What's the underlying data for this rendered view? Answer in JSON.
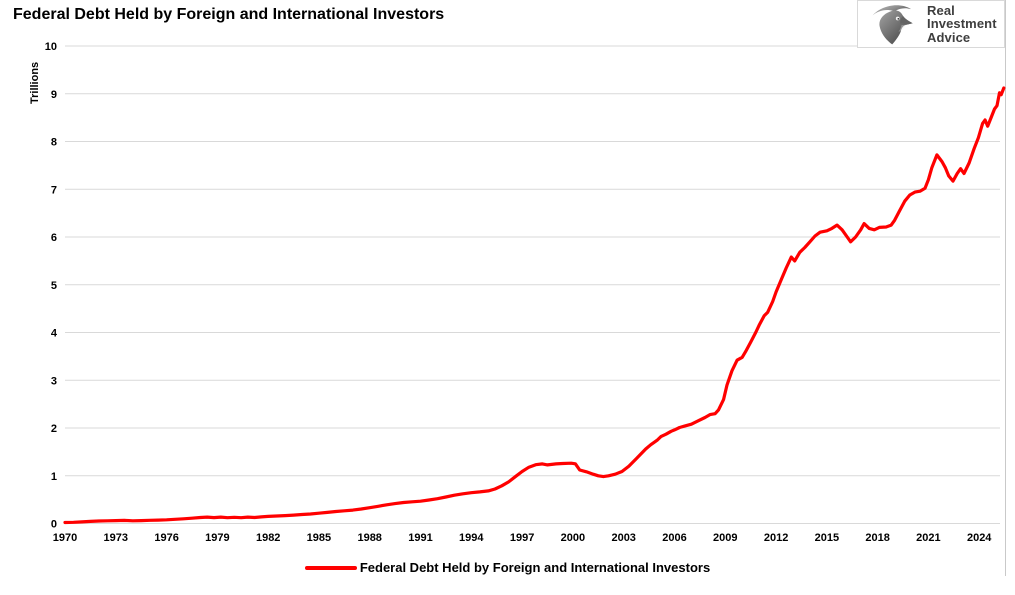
{
  "header": {
    "title": "Federal Debt Held by Foreign and International Investors",
    "logo": {
      "line1": "Real",
      "line2": "Investment",
      "line3": "Advice"
    }
  },
  "chart_data": {
    "type": "line",
    "title": "Federal Debt Held by Foreign and International Investors",
    "xlabel": "",
    "ylabel": "Trillions",
    "series_name": "Federal Debt Held by Foreign and International Investors",
    "line_color": "#FF0000",
    "grid_color": "#D9D9D9",
    "border_color": "#C9C9C9",
    "grid": true,
    "legend_position": "bottom",
    "ylim": [
      0,
      10
    ],
    "y_ticks": [
      0,
      1,
      2,
      3,
      4,
      5,
      6,
      7,
      8,
      9,
      10
    ],
    "x_range": [
      1970,
      2025.5
    ],
    "x_ticks": [
      1970,
      1973,
      1976,
      1979,
      1982,
      1985,
      1988,
      1991,
      1994,
      1997,
      2000,
      2003,
      2006,
      2009,
      2012,
      2015,
      2018,
      2021,
      2024
    ],
    "units": "trillions of dollars",
    "points": [
      [
        1970,
        0.02
      ],
      [
        1970.5,
        0.026
      ],
      [
        1971,
        0.034
      ],
      [
        1971.5,
        0.044
      ],
      [
        1972,
        0.052
      ],
      [
        1972.5,
        0.057
      ],
      [
        1973,
        0.061
      ],
      [
        1973.5,
        0.064
      ],
      [
        1974,
        0.057
      ],
      [
        1974.5,
        0.06
      ],
      [
        1975,
        0.066
      ],
      [
        1975.5,
        0.072
      ],
      [
        1976,
        0.078
      ],
      [
        1976.5,
        0.088
      ],
      [
        1977,
        0.098
      ],
      [
        1977.5,
        0.112
      ],
      [
        1978,
        0.126
      ],
      [
        1978.4,
        0.135
      ],
      [
        1978.8,
        0.124
      ],
      [
        1979.2,
        0.133
      ],
      [
        1979.6,
        0.121
      ],
      [
        1980,
        0.13
      ],
      [
        1980.4,
        0.122
      ],
      [
        1980.8,
        0.134
      ],
      [
        1981.2,
        0.126
      ],
      [
        1981.6,
        0.138
      ],
      [
        1982,
        0.149
      ],
      [
        1982.5,
        0.157
      ],
      [
        1983,
        0.165
      ],
      [
        1983.5,
        0.175
      ],
      [
        1984,
        0.188
      ],
      [
        1984.5,
        0.2
      ],
      [
        1985,
        0.215
      ],
      [
        1985.5,
        0.232
      ],
      [
        1986,
        0.252
      ],
      [
        1986.5,
        0.266
      ],
      [
        1987,
        0.281
      ],
      [
        1987.5,
        0.303
      ],
      [
        1988,
        0.33
      ],
      [
        1988.5,
        0.36
      ],
      [
        1989,
        0.392
      ],
      [
        1989.5,
        0.417
      ],
      [
        1990,
        0.44
      ],
      [
        1990.5,
        0.455
      ],
      [
        1991,
        0.468
      ],
      [
        1991.5,
        0.492
      ],
      [
        1992,
        0.52
      ],
      [
        1992.5,
        0.556
      ],
      [
        1993,
        0.592
      ],
      [
        1993.5,
        0.622
      ],
      [
        1994,
        0.646
      ],
      [
        1994.5,
        0.662
      ],
      [
        1995,
        0.682
      ],
      [
        1995.4,
        0.722
      ],
      [
        1995.8,
        0.79
      ],
      [
        1996.2,
        0.872
      ],
      [
        1996.6,
        0.98
      ],
      [
        1997,
        1.09
      ],
      [
        1997.4,
        1.18
      ],
      [
        1997.8,
        1.232
      ],
      [
        1998.2,
        1.248
      ],
      [
        1998.5,
        1.228
      ],
      [
        1999,
        1.248
      ],
      [
        1999.4,
        1.256
      ],
      [
        1999.9,
        1.262
      ],
      [
        2000.15,
        1.25
      ],
      [
        2000.4,
        1.12
      ],
      [
        2000.8,
        1.082
      ],
      [
        2001.2,
        1.032
      ],
      [
        2001.5,
        0.998
      ],
      [
        2001.8,
        0.982
      ],
      [
        2002.1,
        1.0
      ],
      [
        2002.5,
        1.032
      ],
      [
        2002.9,
        1.088
      ],
      [
        2003.3,
        1.2
      ],
      [
        2003.7,
        1.34
      ],
      [
        2004,
        1.45
      ],
      [
        2004.3,
        1.56
      ],
      [
        2004.6,
        1.65
      ],
      [
        2004.8,
        1.7
      ],
      [
        2005,
        1.75
      ],
      [
        2005.2,
        1.82
      ],
      [
        2005.5,
        1.87
      ],
      [
        2005.8,
        1.93
      ],
      [
        2006,
        1.96
      ],
      [
        2006.3,
        2.01
      ],
      [
        2006.6,
        2.04
      ],
      [
        2007,
        2.08
      ],
      [
        2007.4,
        2.15
      ],
      [
        2007.8,
        2.22
      ],
      [
        2008.1,
        2.28
      ],
      [
        2008.4,
        2.3
      ],
      [
        2008.6,
        2.38
      ],
      [
        2008.9,
        2.6
      ],
      [
        2009.1,
        2.9
      ],
      [
        2009.4,
        3.2
      ],
      [
        2009.7,
        3.42
      ],
      [
        2010,
        3.48
      ],
      [
        2010.2,
        3.6
      ],
      [
        2010.5,
        3.8
      ],
      [
        2010.8,
        4.0
      ],
      [
        2011,
        4.15
      ],
      [
        2011.3,
        4.35
      ],
      [
        2011.5,
        4.42
      ],
      [
        2011.8,
        4.65
      ],
      [
        2012,
        4.85
      ],
      [
        2012.3,
        5.1
      ],
      [
        2012.6,
        5.35
      ],
      [
        2012.9,
        5.58
      ],
      [
        2013.1,
        5.5
      ],
      [
        2013.4,
        5.68
      ],
      [
        2013.7,
        5.78
      ],
      [
        2014,
        5.9
      ],
      [
        2014.3,
        6.02
      ],
      [
        2014.6,
        6.1
      ],
      [
        2015,
        6.13
      ],
      [
        2015.3,
        6.18
      ],
      [
        2015.6,
        6.25
      ],
      [
        2015.9,
        6.15
      ],
      [
        2016.2,
        6.0
      ],
      [
        2016.4,
        5.9
      ],
      [
        2016.7,
        6.0
      ],
      [
        2017,
        6.15
      ],
      [
        2017.2,
        6.28
      ],
      [
        2017.5,
        6.18
      ],
      [
        2017.8,
        6.15
      ],
      [
        2018.1,
        6.2
      ],
      [
        2018.5,
        6.21
      ],
      [
        2018.8,
        6.25
      ],
      [
        2019,
        6.35
      ],
      [
        2019.3,
        6.55
      ],
      [
        2019.6,
        6.75
      ],
      [
        2019.9,
        6.88
      ],
      [
        2020.2,
        6.94
      ],
      [
        2020.5,
        6.96
      ],
      [
        2020.8,
        7.02
      ],
      [
        2021,
        7.2
      ],
      [
        2021.2,
        7.45
      ],
      [
        2021.5,
        7.72
      ],
      [
        2021.8,
        7.58
      ],
      [
        2022,
        7.45
      ],
      [
        2022.2,
        7.28
      ],
      [
        2022.45,
        7.17
      ],
      [
        2022.7,
        7.33
      ],
      [
        2022.9,
        7.43
      ],
      [
        2023.1,
        7.33
      ],
      [
        2023.4,
        7.55
      ],
      [
        2023.7,
        7.85
      ],
      [
        2023.95,
        8.08
      ],
      [
        2024.2,
        8.38
      ],
      [
        2024.35,
        8.45
      ],
      [
        2024.5,
        8.32
      ],
      [
        2024.7,
        8.5
      ],
      [
        2024.9,
        8.68
      ],
      [
        2025.05,
        8.75
      ],
      [
        2025.2,
        9.02
      ],
      [
        2025.3,
        8.98
      ],
      [
        2025.45,
        9.12
      ]
    ]
  }
}
